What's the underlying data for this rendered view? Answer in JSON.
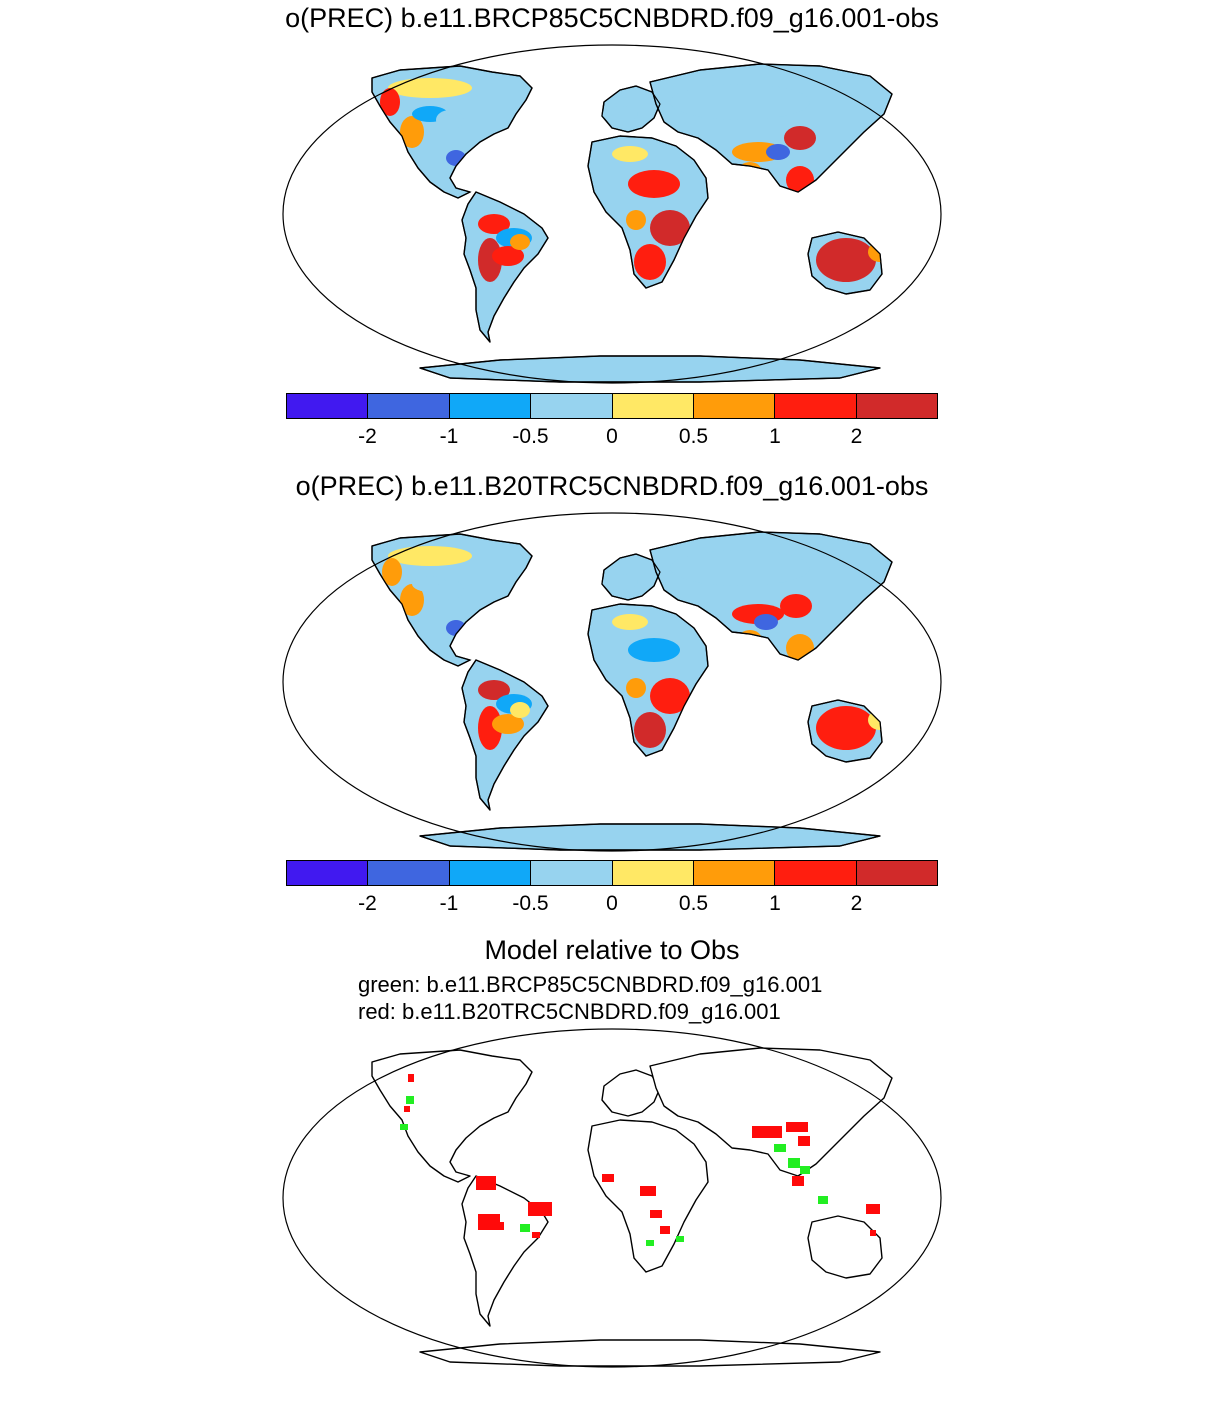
{
  "panels": [
    {
      "title": "o(PREC) b.e11.BRCP85C5CNBDRD.f09_g16.001-obs"
    },
    {
      "title": "o(PREC) b.e11.B20TRC5CNBDRD.f09_g16.001-obs"
    }
  ],
  "colorbar": {
    "colors": [
      "#4119f0",
      "#3f66e0",
      "#10a8f8",
      "#97d3ef",
      "#ffe865",
      "#ff9c0a",
      "#ff1e0f",
      "#d12a2a"
    ],
    "tick_labels": [
      "-2",
      "-1",
      "-0.5",
      "0",
      "0.5",
      "1",
      "2"
    ]
  },
  "comparison": {
    "title": "Model relative to Obs",
    "green_label": "green: b.e11.BRCP85C5CNBDRD.f09_g16.001",
    "red_label": "red: b.e11.B20TRC5CNBDRD.f09_g16.001",
    "green_color": "#22ee22",
    "red_color": "#ff0a0a"
  }
}
